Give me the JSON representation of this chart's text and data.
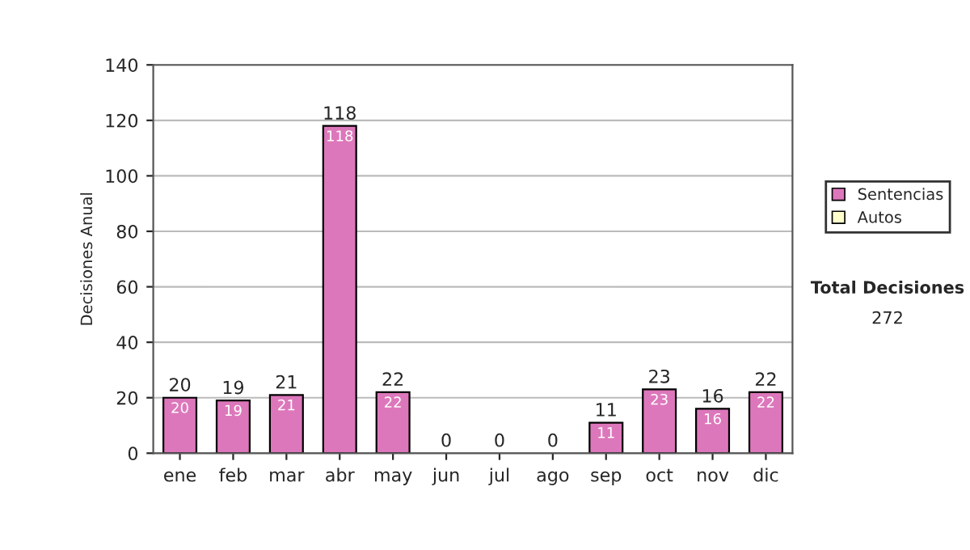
{
  "chart_data": {
    "type": "bar",
    "stacked": true,
    "ylabel": "Decisiones Anual",
    "categories": [
      "ene",
      "feb",
      "mar",
      "abr",
      "may",
      "jun",
      "jul",
      "ago",
      "sep",
      "oct",
      "nov",
      "dic"
    ],
    "series": [
      {
        "name": "Sentencias",
        "color": "#dd77bb",
        "values": [
          20,
          19,
          21,
          118,
          22,
          0,
          0,
          0,
          11,
          23,
          16,
          22
        ],
        "value_labels": [
          "20",
          "19",
          "21",
          "118",
          "22",
          null,
          null,
          null,
          "11",
          "23",
          "16",
          "22"
        ]
      },
      {
        "name": "Autos",
        "color": "#ffffcc",
        "values": [
          0,
          0,
          0,
          0,
          0,
          0,
          0,
          0,
          0,
          0,
          0,
          0
        ]
      }
    ],
    "totals": [
      "20",
      "19",
      "21",
      "118",
      "22",
      "0",
      "0",
      "0",
      "11",
      "23",
      "16",
      "22"
    ],
    "ylim": [
      0,
      140
    ],
    "yticks": [
      0,
      20,
      40,
      60,
      80,
      100,
      120,
      140
    ],
    "grid": "y",
    "legend": "right",
    "annotations": [
      "Total Decisiones",
      "272"
    ]
  }
}
